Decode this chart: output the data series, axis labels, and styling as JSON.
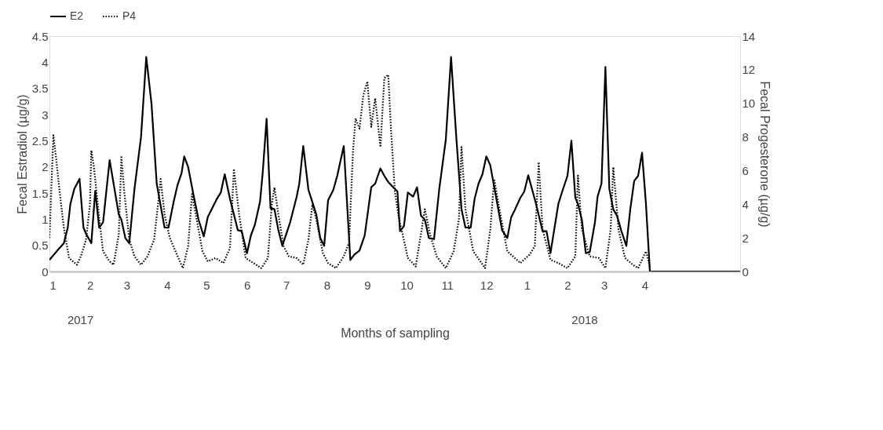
{
  "chart_data": {
    "type": "line",
    "xlabel": "Months of sampling",
    "ylabel": "Fecal Estradiol (µg/g)",
    "y2label": "Fecal Progesterone (µg/g)",
    "xlim": [
      "2017-01-01",
      "2018-06-13"
    ],
    "xticks": [
      {
        "value": "2017-01-01",
        "label": "1"
      },
      {
        "value": "2017-02-01",
        "label": "2"
      },
      {
        "value": "2017-03-01",
        "label": "3"
      },
      {
        "value": "2017-04-01",
        "label": "4"
      },
      {
        "value": "2017-05-01",
        "label": "5"
      },
      {
        "value": "2017-06-01",
        "label": "6"
      },
      {
        "value": "2017-07-01",
        "label": "7"
      },
      {
        "value": "2017-08-01",
        "label": "8"
      },
      {
        "value": "2017-09-01",
        "label": "9"
      },
      {
        "value": "2017-10-01",
        "label": "10"
      },
      {
        "value": "2017-11-01",
        "label": "11"
      },
      {
        "value": "2017-12-01",
        "label": "12"
      },
      {
        "value": "2018-01-01",
        "label": "1"
      },
      {
        "value": "2018-02-01",
        "label": "2"
      },
      {
        "value": "2018-03-01",
        "label": "3"
      },
      {
        "value": "2018-04-01",
        "label": "4"
      }
    ],
    "ylim": [
      0,
      4.5
    ],
    "yticks": [
      0,
      0.5,
      1,
      1.5,
      2,
      2.5,
      3,
      3.5,
      4,
      4.5
    ],
    "y2lim": [
      0,
      14
    ],
    "y2ticks": [
      0,
      2,
      4,
      6,
      8,
      10,
      12,
      14
    ],
    "grid": false,
    "legend": "top",
    "marker": "none",
    "annotations": [
      "2017",
      "2018"
    ],
    "series": [
      {
        "name": "E2",
        "color": "#000000",
        "line_style": "solid",
        "x": [
          "2017-01-01",
          "2017-01-07",
          "2017-01-12",
          "2017-01-15",
          "2017-01-17",
          "2017-01-20",
          "2017-01-24",
          "2017-01-27",
          "2017-01-29",
          "2017-02-02",
          "2017-02-05",
          "2017-02-08",
          "2017-02-11",
          "2017-02-16",
          "2017-02-23",
          "2017-02-25",
          "2017-02-28",
          "2017-03-03",
          "2017-03-07",
          "2017-03-12",
          "2017-03-16",
          "2017-03-20",
          "2017-03-24",
          "2017-03-30",
          "2017-04-02",
          "2017-04-06",
          "2017-04-09",
          "2017-04-12",
          "2017-04-14",
          "2017-04-17",
          "2017-04-21",
          "2017-04-25",
          "2017-04-29",
          "2017-05-02",
          "2017-05-05",
          "2017-05-09",
          "2017-05-12",
          "2017-05-15",
          "2017-05-19",
          "2017-05-25",
          "2017-05-28",
          "2017-06-01",
          "2017-06-04",
          "2017-06-07",
          "2017-06-11",
          "2017-06-13",
          "2017-06-16",
          "2017-06-19",
          "2017-06-22",
          "2017-06-25",
          "2017-06-28",
          "2017-07-04",
          "2017-07-09",
          "2017-07-11",
          "2017-07-14",
          "2017-07-18",
          "2017-07-24",
          "2017-07-27",
          "2017-07-30",
          "2017-08-02",
          "2017-08-06",
          "2017-08-09",
          "2017-08-14",
          "2017-08-19",
          "2017-08-22",
          "2017-08-26",
          "2017-08-30",
          "2017-09-04",
          "2017-09-07",
          "2017-09-11",
          "2017-09-14",
          "2017-09-17",
          "2017-09-20",
          "2017-09-24",
          "2017-09-26",
          "2017-09-29",
          "2017-10-02",
          "2017-10-06",
          "2017-10-09",
          "2017-10-12",
          "2017-10-15",
          "2017-10-18",
          "2017-10-22",
          "2017-10-26",
          "2017-10-31",
          "2017-11-04",
          "2017-11-08",
          "2017-11-12",
          "2017-11-15",
          "2017-11-19",
          "2017-11-22",
          "2017-11-25",
          "2017-11-28",
          "2017-12-01",
          "2017-12-04",
          "2017-12-08",
          "2017-12-13",
          "2017-12-17",
          "2017-12-20",
          "2017-12-23",
          "2017-12-27",
          "2017-12-30",
          "2018-01-02",
          "2018-01-08",
          "2018-01-13",
          "2018-01-16",
          "2018-01-19",
          "2018-01-25",
          "2018-01-28",
          "2018-02-01",
          "2018-02-04",
          "2018-02-07",
          "2018-02-09",
          "2018-02-12",
          "2018-02-15",
          "2018-02-18",
          "2018-02-22",
          "2018-02-24",
          "2018-02-27",
          "2018-03-02",
          "2018-03-05",
          "2018-03-08",
          "2018-03-11",
          "2018-03-14",
          "2018-03-18",
          "2018-03-21",
          "2018-03-24",
          "2018-03-27",
          "2018-03-30",
          "2018-04-02",
          "2018-04-05",
          "2018-06-13"
        ],
        "values": [
          0.22,
          0.4,
          0.54,
          0.84,
          1.29,
          1.58,
          1.77,
          0.84,
          0.72,
          0.54,
          1.54,
          0.84,
          0.94,
          2.13,
          1.09,
          0.99,
          0.64,
          0.54,
          1.58,
          2.57,
          4.1,
          3.21,
          1.68,
          0.84,
          0.84,
          1.34,
          1.66,
          1.88,
          2.2,
          2.0,
          1.48,
          0.99,
          0.67,
          1.04,
          1.19,
          1.39,
          1.51,
          1.86,
          1.39,
          0.79,
          0.77,
          0.35,
          0.69,
          0.89,
          1.34,
          1.88,
          2.92,
          1.21,
          1.19,
          0.79,
          0.49,
          0.94,
          1.43,
          1.68,
          2.4,
          1.56,
          1.09,
          0.64,
          0.49,
          1.36,
          1.56,
          1.83,
          2.4,
          0.22,
          0.32,
          0.4,
          0.69,
          1.61,
          1.68,
          1.97,
          1.83,
          1.71,
          1.63,
          1.53,
          0.77,
          0.87,
          1.51,
          1.43,
          1.61,
          1.07,
          0.99,
          0.64,
          0.62,
          1.58,
          2.52,
          4.1,
          2.57,
          1.19,
          0.84,
          0.84,
          1.39,
          1.68,
          1.86,
          2.2,
          2.03,
          1.48,
          0.79,
          0.64,
          1.04,
          1.19,
          1.41,
          1.53,
          1.84,
          1.29,
          0.77,
          0.77,
          0.35,
          1.29,
          1.53,
          1.83,
          2.5,
          1.41,
          1.29,
          0.99,
          0.35,
          0.37,
          0.94,
          1.43,
          1.68,
          3.91,
          1.58,
          1.19,
          1.06,
          0.79,
          0.49,
          1.19,
          1.73,
          1.83,
          2.27,
          1.29,
          0,
          0
        ]
      },
      {
        "name": "P4",
        "color": "#000000",
        "line_style": "dotted",
        "axis": "y2",
        "x": [
          "2017-01-01",
          "2017-01-04",
          "2017-01-06",
          "2017-01-09",
          "2017-01-12",
          "2017-01-16",
          "2017-01-22",
          "2017-01-25",
          "2017-01-29",
          "2017-02-01",
          "2017-02-02",
          "2017-02-04",
          "2017-02-08",
          "2017-02-11",
          "2017-02-16",
          "2017-02-19",
          "2017-02-23",
          "2017-02-25",
          "2017-02-27",
          "2017-03-03",
          "2017-03-07",
          "2017-03-12",
          "2017-03-17",
          "2017-03-22",
          "2017-03-25",
          "2017-03-27",
          "2017-03-30",
          "2017-04-03",
          "2017-04-09",
          "2017-04-13",
          "2017-04-17",
          "2017-04-20",
          "2017-04-24",
          "2017-04-28",
          "2017-05-02",
          "2017-05-08",
          "2017-05-14",
          "2017-05-19",
          "2017-05-22",
          "2017-05-26",
          "2017-05-31",
          "2017-06-06",
          "2017-06-12",
          "2017-06-17",
          "2017-06-20",
          "2017-06-22",
          "2017-06-25",
          "2017-06-29",
          "2017-07-03",
          "2017-07-09",
          "2017-07-14",
          "2017-07-18",
          "2017-07-21",
          "2017-07-24",
          "2017-07-29",
          "2017-08-02",
          "2017-08-08",
          "2017-08-14",
          "2017-08-18",
          "2017-08-21",
          "2017-08-23",
          "2017-08-26",
          "2017-08-29",
          "2017-09-01",
          "2017-09-04",
          "2017-09-07",
          "2017-09-11",
          "2017-09-14",
          "2017-09-17",
          "2017-09-19",
          "2017-09-22",
          "2017-09-25",
          "2017-09-28",
          "2017-10-02",
          "2017-10-08",
          "2017-10-15",
          "2017-10-19",
          "2017-10-24",
          "2017-10-31",
          "2017-11-06",
          "2017-11-10",
          "2017-11-12",
          "2017-11-15",
          "2017-11-21",
          "2017-11-30",
          "2017-12-04",
          "2017-12-07",
          "2017-12-11",
          "2017-12-17",
          "2017-12-27",
          "2018-01-03",
          "2018-01-07",
          "2018-01-10",
          "2018-01-13",
          "2018-01-19",
          "2018-01-25",
          "2018-02-01",
          "2018-02-07",
          "2018-02-09",
          "2018-02-12",
          "2018-02-18",
          "2018-02-25",
          "2018-03-02",
          "2018-03-06",
          "2018-03-08",
          "2018-03-12",
          "2018-03-17",
          "2018-03-23",
          "2018-03-27",
          "2018-04-02",
          "2018-04-05"
        ],
        "values": [
          2.0,
          8.1,
          6.8,
          4.6,
          2.6,
          0.8,
          0.4,
          0.9,
          1.9,
          4.0,
          7.2,
          6.2,
          3.2,
          1.2,
          0.6,
          0.4,
          2.2,
          6.8,
          4.9,
          1.9,
          0.9,
          0.4,
          0.9,
          1.9,
          4.0,
          5.5,
          3.4,
          2.0,
          0.9,
          0.2,
          1.5,
          4.6,
          2.9,
          1.2,
          0.6,
          0.8,
          0.5,
          1.4,
          6.1,
          3.4,
          0.8,
          0.5,
          0.2,
          0.8,
          4.0,
          5.0,
          3.4,
          1.5,
          0.9,
          0.8,
          0.4,
          1.9,
          4.0,
          3.1,
          1.1,
          0.5,
          0.2,
          0.9,
          1.7,
          7.1,
          9.1,
          8.5,
          10.5,
          11.3,
          8.6,
          10.3,
          7.4,
          11.5,
          11.7,
          8.6,
          4.8,
          3.2,
          2.2,
          0.8,
          0.3,
          3.7,
          2.2,
          0.9,
          0.2,
          1.2,
          3.1,
          7.4,
          3.7,
          1.2,
          0.2,
          2.5,
          5.5,
          3.7,
          1.2,
          0.5,
          1.0,
          1.5,
          6.5,
          2.5,
          0.7,
          0.5,
          0.2,
          0.9,
          5.7,
          2.5,
          0.9,
          0.8,
          0.2,
          2.5,
          6.2,
          2.5,
          0.8,
          0.4,
          0.2,
          1.2,
          0.3
        ]
      }
    ]
  }
}
